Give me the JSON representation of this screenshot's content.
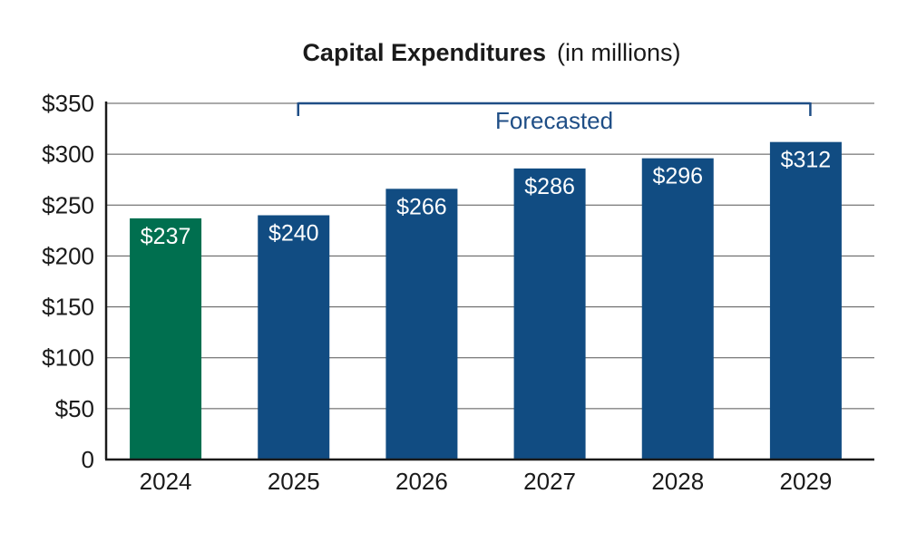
{
  "chart_data": {
    "type": "bar",
    "title": "Capital Expenditures",
    "subtitle": "(in millions)",
    "categories": [
      "2024",
      "2025",
      "2026",
      "2027",
      "2028",
      "2029"
    ],
    "values": [
      237,
      240,
      266,
      286,
      296,
      312
    ],
    "value_labels": [
      "$237",
      "$240",
      "$266",
      "$286",
      "$296",
      "$312"
    ],
    "bar_colors": [
      "#006f4f",
      "#114c82",
      "#114c82",
      "#114c82",
      "#114c82",
      "#114c82"
    ],
    "yticks": [
      0,
      50,
      100,
      150,
      200,
      250,
      300,
      350
    ],
    "ytick_labels": [
      "0",
      "$50",
      "$100",
      "$150",
      "$200",
      "$250",
      "$300",
      "$350"
    ],
    "ylim": [
      0,
      350
    ],
    "xlabel": "",
    "ylabel": "",
    "grid": true,
    "annotation": {
      "text": "Forecasted",
      "from_category": "2025",
      "to_category": "2029",
      "color": "#1f4e86"
    }
  }
}
